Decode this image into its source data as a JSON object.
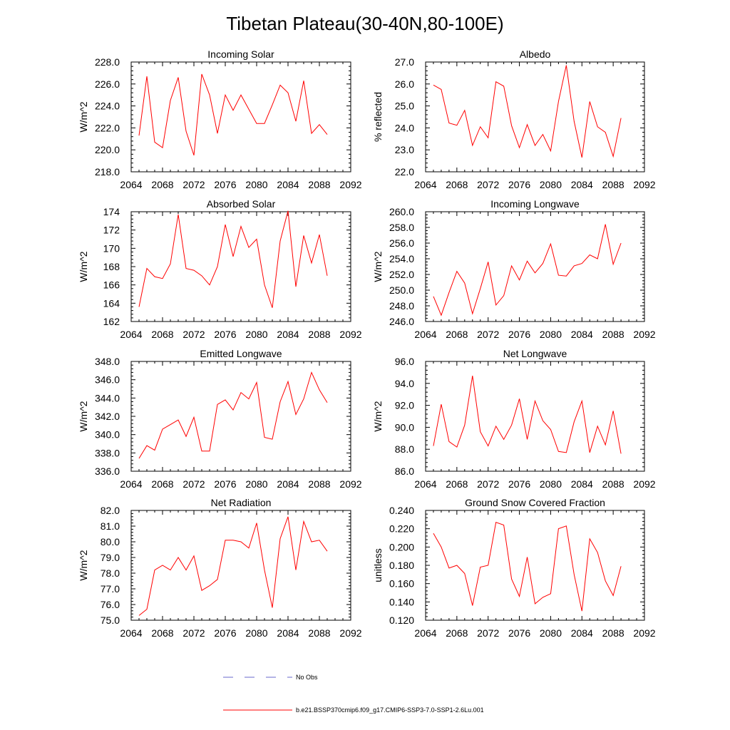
{
  "page": {
    "title": "Tibetan Plateau(30-40N,80-100E)"
  },
  "legend": {
    "no_obs_label": "No Obs",
    "no_obs_color": "#6a6acd",
    "model_label": "b.e21.BSSP370cmip6.f09_g17.CMIP6-SSP3-7.0-SSP1-2.6Lu.001",
    "model_color": "#ff0000"
  },
  "chart_data": [
    {
      "type": "line",
      "title": "Incoming Solar",
      "ylabel": "W/m^2",
      "xlim": [
        2064,
        2092
      ],
      "ylim": [
        218,
        228
      ],
      "xticks": [
        2064,
        2068,
        2072,
        2076,
        2080,
        2084,
        2088,
        2092
      ],
      "yticks": [
        218,
        220,
        222,
        224,
        226,
        228
      ],
      "ytick_labels": [
        "218.0",
        "220.0",
        "222.0",
        "224.0",
        "226.0",
        "228.0"
      ],
      "x": [
        2065,
        2066,
        2067,
        2068,
        2069,
        2070,
        2071,
        2072,
        2073,
        2074,
        2075,
        2076,
        2077,
        2078,
        2079,
        2080,
        2081,
        2082,
        2083,
        2084,
        2085,
        2086,
        2087,
        2088,
        2089
      ],
      "series": [
        {
          "color": "#ff0000",
          "values": [
            221.3,
            226.7,
            220.7,
            220.2,
            224.5,
            226.6,
            221.7,
            219.5,
            226.9,
            225.0,
            221.5,
            225.0,
            223.6,
            225.0,
            223.7,
            222.4,
            222.4,
            224.1,
            225.9,
            225.2,
            222.6,
            226.3,
            221.5,
            222.3,
            221.4
          ]
        }
      ]
    },
    {
      "type": "line",
      "title": "Albedo",
      "ylabel": "% reflected",
      "xlim": [
        2064,
        2092
      ],
      "ylim": [
        22,
        27
      ],
      "xticks": [
        2064,
        2068,
        2072,
        2076,
        2080,
        2084,
        2088,
        2092
      ],
      "yticks": [
        22,
        23,
        24,
        25,
        26,
        27
      ],
      "ytick_labels": [
        "22.0",
        "23.0",
        "24.0",
        "25.0",
        "26.0",
        "27.0"
      ],
      "x": [
        2065,
        2066,
        2067,
        2068,
        2069,
        2070,
        2071,
        2072,
        2073,
        2074,
        2075,
        2076,
        2077,
        2078,
        2079,
        2080,
        2081,
        2082,
        2083,
        2084,
        2085,
        2086,
        2087,
        2088,
        2089
      ],
      "series": [
        {
          "color": "#ff0000",
          "values": [
            25.95,
            25.75,
            24.22,
            24.12,
            24.8,
            23.2,
            24.05,
            23.55,
            26.1,
            25.9,
            24.1,
            23.1,
            24.15,
            23.2,
            23.7,
            22.95,
            25.2,
            26.85,
            24.3,
            22.65,
            25.2,
            24.05,
            23.8,
            22.7,
            24.45
          ]
        }
      ]
    },
    {
      "type": "line",
      "title": "Absorbed Solar",
      "ylabel": "W/m^2",
      "xlim": [
        2064,
        2092
      ],
      "ylim": [
        162,
        174
      ],
      "xticks": [
        2064,
        2068,
        2072,
        2076,
        2080,
        2084,
        2088,
        2092
      ],
      "yticks": [
        162,
        164,
        166,
        168,
        170,
        172,
        174
      ],
      "ytick_labels": [
        "162",
        "164",
        "166",
        "168",
        "170",
        "172",
        "174"
      ],
      "x": [
        2065,
        2066,
        2067,
        2068,
        2069,
        2070,
        2071,
        2072,
        2073,
        2074,
        2075,
        2076,
        2077,
        2078,
        2079,
        2080,
        2081,
        2082,
        2083,
        2084,
        2085,
        2086,
        2087,
        2088,
        2089
      ],
      "series": [
        {
          "color": "#ff0000",
          "values": [
            163.6,
            167.8,
            166.9,
            166.7,
            168.3,
            173.7,
            167.8,
            167.6,
            167.0,
            166.0,
            168.0,
            172.6,
            169.1,
            172.4,
            170.1,
            171.0,
            166.0,
            163.5,
            170.8,
            174.1,
            165.8,
            171.4,
            168.4,
            171.5,
            167.0
          ]
        }
      ]
    },
    {
      "type": "line",
      "title": "Incoming Longwave",
      "ylabel": "W/m^2",
      "xlim": [
        2064,
        2092
      ],
      "ylim": [
        246,
        260
      ],
      "xticks": [
        2064,
        2068,
        2072,
        2076,
        2080,
        2084,
        2088,
        2092
      ],
      "yticks": [
        246,
        248,
        250,
        252,
        254,
        256,
        258,
        260
      ],
      "ytick_labels": [
        "246.0",
        "248.0",
        "250.0",
        "252.0",
        "254.0",
        "256.0",
        "258.0",
        "260.0"
      ],
      "x": [
        2065,
        2066,
        2067,
        2068,
        2069,
        2070,
        2071,
        2072,
        2073,
        2074,
        2075,
        2076,
        2077,
        2078,
        2079,
        2080,
        2081,
        2082,
        2083,
        2084,
        2085,
        2086,
        2087,
        2088,
        2089
      ],
      "series": [
        {
          "color": "#ff0000",
          "values": [
            249.2,
            246.8,
            249.7,
            252.4,
            250.9,
            247.0,
            250.2,
            253.6,
            248.1,
            249.3,
            253.1,
            251.3,
            253.7,
            252.2,
            253.4,
            255.9,
            251.9,
            251.8,
            253.1,
            253.4,
            254.5,
            254.0,
            258.4,
            253.3,
            256.0
          ]
        }
      ]
    },
    {
      "type": "line",
      "title": "Emitted Longwave",
      "ylabel": "W/m^2",
      "xlim": [
        2064,
        2092
      ],
      "ylim": [
        336,
        348
      ],
      "xticks": [
        2064,
        2068,
        2072,
        2076,
        2080,
        2084,
        2088,
        2092
      ],
      "yticks": [
        336,
        338,
        340,
        342,
        344,
        346,
        348
      ],
      "ytick_labels": [
        "336.0",
        "338.0",
        "340.0",
        "342.0",
        "344.0",
        "346.0",
        "348.0"
      ],
      "x": [
        2065,
        2066,
        2067,
        2068,
        2069,
        2070,
        2071,
        2072,
        2073,
        2074,
        2075,
        2076,
        2077,
        2078,
        2079,
        2080,
        2081,
        2082,
        2083,
        2084,
        2085,
        2086,
        2087,
        2088,
        2089
      ],
      "series": [
        {
          "color": "#ff0000",
          "values": [
            337.4,
            338.8,
            338.3,
            340.6,
            341.1,
            341.6,
            339.8,
            341.9,
            338.2,
            338.2,
            343.3,
            343.8,
            342.7,
            344.6,
            343.9,
            345.7,
            339.7,
            339.5,
            343.6,
            345.8,
            342.2,
            343.9,
            346.8,
            344.9,
            343.5
          ]
        }
      ]
    },
    {
      "type": "line",
      "title": "Net Longwave",
      "ylabel": "W/m^2",
      "xlim": [
        2064,
        2092
      ],
      "ylim": [
        86,
        96
      ],
      "xticks": [
        2064,
        2068,
        2072,
        2076,
        2080,
        2084,
        2088,
        2092
      ],
      "yticks": [
        86,
        88,
        90,
        92,
        94,
        96
      ],
      "ytick_labels": [
        "86.0",
        "88.0",
        "90.0",
        "92.0",
        "94.0",
        "96.0"
      ],
      "x": [
        2065,
        2066,
        2067,
        2068,
        2069,
        2070,
        2071,
        2072,
        2073,
        2074,
        2075,
        2076,
        2077,
        2078,
        2079,
        2080,
        2081,
        2082,
        2083,
        2084,
        2085,
        2086,
        2087,
        2088,
        2089
      ],
      "series": [
        {
          "color": "#ff0000",
          "values": [
            88.3,
            92.1,
            88.7,
            88.2,
            90.2,
            94.7,
            89.6,
            88.3,
            90.1,
            88.9,
            90.2,
            92.6,
            88.9,
            92.4,
            90.6,
            89.8,
            87.8,
            87.7,
            90.5,
            92.4,
            87.7,
            90.1,
            88.4,
            91.5,
            87.6
          ]
        }
      ]
    },
    {
      "type": "line",
      "title": "Net Radiation",
      "ylabel": "W/m^2",
      "xlim": [
        2064,
        2092
      ],
      "ylim": [
        75,
        82
      ],
      "xticks": [
        2064,
        2068,
        2072,
        2076,
        2080,
        2084,
        2088,
        2092
      ],
      "yticks": [
        75,
        76,
        77,
        78,
        79,
        80,
        81,
        82
      ],
      "ytick_labels": [
        "75.0",
        "76.0",
        "77.0",
        "78.0",
        "79.0",
        "80.0",
        "81.0",
        "82.0"
      ],
      "x": [
        2065,
        2066,
        2067,
        2068,
        2069,
        2070,
        2071,
        2072,
        2073,
        2074,
        2075,
        2076,
        2077,
        2078,
        2079,
        2080,
        2081,
        2082,
        2083,
        2084,
        2085,
        2086,
        2087,
        2088,
        2089
      ],
      "series": [
        {
          "color": "#ff0000",
          "values": [
            75.3,
            75.7,
            78.2,
            78.5,
            78.2,
            79.0,
            78.2,
            79.1,
            76.9,
            77.2,
            77.6,
            80.1,
            80.1,
            80.0,
            79.6,
            81.2,
            78.2,
            75.8,
            80.2,
            81.6,
            78.2,
            81.3,
            80.0,
            80.1,
            79.4
          ]
        }
      ]
    },
    {
      "type": "line",
      "title": "Ground Snow Covered Fraction",
      "ylabel": "unitless",
      "xlim": [
        2064,
        2092
      ],
      "ylim": [
        0.12,
        0.24
      ],
      "xticks": [
        2064,
        2068,
        2072,
        2076,
        2080,
        2084,
        2088,
        2092
      ],
      "yticks": [
        0.12,
        0.14,
        0.16,
        0.18,
        0.2,
        0.22,
        0.24
      ],
      "ytick_labels": [
        "0.120",
        "0.140",
        "0.160",
        "0.180",
        "0.200",
        "0.220",
        "0.240"
      ],
      "x": [
        2065,
        2066,
        2067,
        2068,
        2069,
        2070,
        2071,
        2072,
        2073,
        2074,
        2075,
        2076,
        2077,
        2078,
        2079,
        2080,
        2081,
        2082,
        2083,
        2084,
        2085,
        2086,
        2087,
        2088,
        2089
      ],
      "series": [
        {
          "color": "#ff0000",
          "values": [
            0.215,
            0.2,
            0.177,
            0.18,
            0.171,
            0.136,
            0.178,
            0.18,
            0.227,
            0.224,
            0.165,
            0.146,
            0.189,
            0.138,
            0.145,
            0.149,
            0.22,
            0.223,
            0.17,
            0.13,
            0.209,
            0.194,
            0.163,
            0.147,
            0.179
          ]
        }
      ]
    }
  ]
}
